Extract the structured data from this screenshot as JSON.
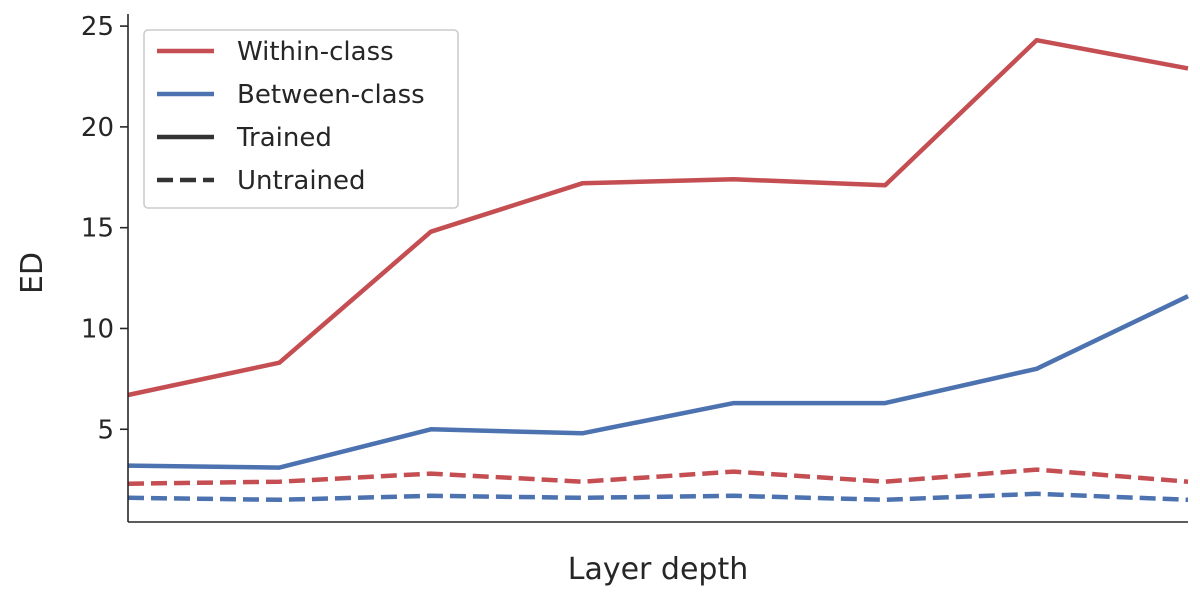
{
  "chart_data": {
    "type": "line",
    "title": "",
    "xlabel": "Layer depth",
    "ylabel": "ED",
    "x": [
      1,
      2,
      3,
      4,
      5,
      6,
      7,
      8
    ],
    "xlim": [
      1,
      8
    ],
    "ylim": [
      0.4,
      25.6
    ],
    "yticks": [
      5,
      10,
      15,
      20,
      25
    ],
    "ytick_labels": [
      "5",
      "10",
      "15",
      "20",
      "25"
    ],
    "grid": false,
    "legend_position": "top-left",
    "series": [
      {
        "condition": "trained",
        "class": "within",
        "color": "#c44e52",
        "linestyle": "solid",
        "values": [
          6.7,
          8.3,
          14.8,
          17.2,
          17.4,
          17.1,
          24.3,
          22.9
        ]
      },
      {
        "condition": "trained",
        "class": "between",
        "color": "#4c72b0",
        "linestyle": "solid",
        "values": [
          3.2,
          3.1,
          5.0,
          4.8,
          6.3,
          6.3,
          8.0,
          11.6
        ]
      },
      {
        "condition": "untrained",
        "class": "within",
        "color": "#c44e52",
        "linestyle": "dashed",
        "values": [
          2.3,
          2.4,
          2.8,
          2.4,
          2.9,
          2.4,
          3.0,
          2.4
        ]
      },
      {
        "condition": "untrained",
        "class": "between",
        "color": "#4c72b0",
        "linestyle": "dashed",
        "values": [
          1.6,
          1.5,
          1.7,
          1.6,
          1.7,
          1.5,
          1.8,
          1.5
        ]
      }
    ],
    "legend": [
      {
        "label": "Within-class",
        "color": "#c44e52",
        "linestyle": "solid"
      },
      {
        "label": "Between-class",
        "color": "#4c72b0",
        "linestyle": "solid"
      },
      {
        "label": "Trained",
        "color": "#333333",
        "linestyle": "solid"
      },
      {
        "label": "Untrained",
        "color": "#333333",
        "linestyle": "dashed"
      }
    ]
  }
}
